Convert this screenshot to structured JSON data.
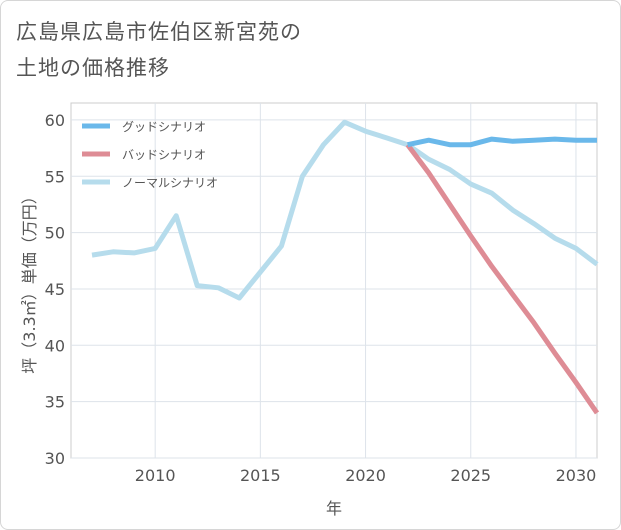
{
  "title_lines": [
    "広島県広島市佐伯区新宮苑の",
    "土地の価格推移"
  ],
  "chart_data": {
    "type": "line",
    "xlabel": "年",
    "ylabel": "坪（3.3㎡）単価（万円）",
    "xlim": [
      2006,
      2031
    ],
    "ylim": [
      30,
      61.5
    ],
    "xticks": [
      2010,
      2015,
      2020,
      2025,
      2030
    ],
    "yticks": [
      30,
      35,
      40,
      45,
      50,
      55,
      60
    ],
    "grid": true,
    "legend_position": "top-left",
    "series": [
      {
        "name": "グッドシナリオ",
        "color": "#6ab8ea",
        "x": [
          2022,
          2023,
          2024,
          2025,
          2026,
          2027,
          2028,
          2029,
          2030,
          2031
        ],
        "y": [
          57.8,
          58.2,
          57.8,
          57.8,
          58.3,
          58.1,
          58.2,
          58.3,
          58.2,
          58.2
        ]
      },
      {
        "name": "バッドシナリオ",
        "color": "#de8c95",
        "x": [
          2022,
          2023,
          2024,
          2025,
          2026,
          2027,
          2028,
          2029,
          2030,
          2031
        ],
        "y": [
          57.8,
          55.3,
          52.5,
          49.7,
          47.0,
          44.5,
          42.0,
          39.3,
          36.7,
          34.0
        ]
      },
      {
        "name": "ノーマルシナリオ",
        "color": "#b6dcec",
        "x": [
          2007,
          2008,
          2009,
          2010,
          2011,
          2012,
          2013,
          2014,
          2015,
          2016,
          2017,
          2018,
          2019,
          2020,
          2021,
          2022,
          2023,
          2024,
          2025,
          2026,
          2027,
          2028,
          2029,
          2030,
          2031
        ],
        "y": [
          48.0,
          48.3,
          48.2,
          48.6,
          51.5,
          45.3,
          45.1,
          44.2,
          46.5,
          48.8,
          55.0,
          57.8,
          59.8,
          59.0,
          58.4,
          57.8,
          56.5,
          55.6,
          54.3,
          53.5,
          52.0,
          50.8,
          49.5,
          48.6,
          47.2
        ]
      }
    ]
  }
}
